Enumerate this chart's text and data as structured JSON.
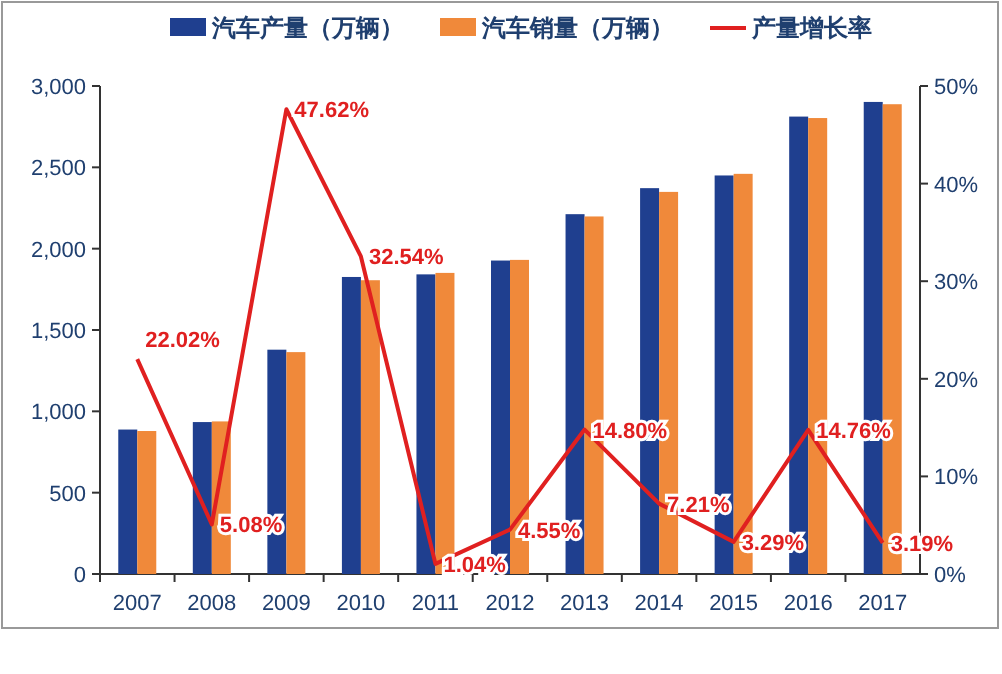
{
  "chart_data": {
    "type": "bar",
    "categories": [
      "2007",
      "2008",
      "2009",
      "2010",
      "2011",
      "2012",
      "2013",
      "2014",
      "2015",
      "2016",
      "2017"
    ],
    "series": [
      {
        "name": "汽车产量（万辆）",
        "color": "#1f3f8f",
        "values": [
          888,
          934,
          1379,
          1826,
          1842,
          1927,
          2212,
          2372,
          2450,
          2812,
          2902
        ]
      },
      {
        "name": "汽车销量（万辆）",
        "color": "#f0893a",
        "values": [
          879,
          938,
          1364,
          1806,
          1851,
          1931,
          2198,
          2349,
          2460,
          2803,
          2888
        ]
      },
      {
        "name": "产量增长率",
        "type": "line",
        "axis": "y2",
        "color": "#e02020",
        "values": [
          22.02,
          5.08,
          47.62,
          32.54,
          1.04,
          4.55,
          14.8,
          7.21,
          3.29,
          14.76,
          3.19
        ],
        "value_labels": [
          "22.02%",
          "5.08%",
          "47.62%",
          "32.54%",
          "1.04%",
          "4.55%",
          "14.80%",
          "7.21%",
          "3.29%",
          "14.76%",
          "3.19%"
        ]
      }
    ],
    "ylim": [
      0,
      3000
    ],
    "yticks": [
      {
        "value": 0,
        "label": "0"
      },
      {
        "value": 500,
        "label": "500"
      },
      {
        "value": 1000,
        "label": "1,000"
      },
      {
        "value": 1500,
        "label": "1,500"
      },
      {
        "value": 2000,
        "label": "2,000"
      },
      {
        "value": 2500,
        "label": "2,500"
      },
      {
        "value": 3000,
        "label": "3,000"
      }
    ],
    "y2lim": [
      0,
      50
    ],
    "y2ticks": [
      {
        "value": 0,
        "label": "0%"
      },
      {
        "value": 10,
        "label": "10%"
      },
      {
        "value": 20,
        "label": "20%"
      },
      {
        "value": 30,
        "label": "30%"
      },
      {
        "value": 40,
        "label": "40%"
      },
      {
        "value": 50,
        "label": "50%"
      }
    ],
    "legend": "top",
    "grid": false,
    "marker": "none",
    "line_style": "solid"
  }
}
